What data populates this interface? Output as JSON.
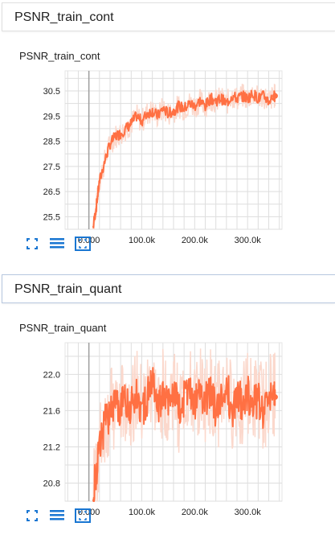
{
  "sections": [
    {
      "header": "PSNR_train_cont",
      "card_title": "PSNR_train_cont",
      "active": false
    },
    {
      "header": "PSNR_train_quant",
      "card_title": "PSNR_train_quant",
      "active": true
    }
  ],
  "toolbar": {
    "icons": [
      "fit-domain-icon",
      "toggle-log-scale-icon",
      "expand-chart-icon"
    ]
  },
  "colors": {
    "line": "#ff7043",
    "line_light": "#fbd8cc",
    "grid": "#dedede",
    "zero_axis": "#9e9e9e",
    "icon": "#1976d2"
  },
  "chart_data": [
    {
      "type": "line",
      "title": "PSNR_train_cont",
      "xlabel": "",
      "ylabel": "",
      "x_ticks": [
        "0.000",
        "100.0k",
        "200.0k",
        "300.0k"
      ],
      "x_tick_values": [
        0,
        100000,
        200000,
        300000
      ],
      "y_ticks": [
        "25.5",
        "26.5",
        "27.5",
        "28.5",
        "29.5",
        "30.5"
      ],
      "y_tick_values": [
        25.5,
        26.5,
        27.5,
        28.5,
        29.5,
        30.5
      ],
      "xlim": [
        -45000,
        365000
      ],
      "ylim": [
        25.0,
        31.3
      ],
      "grid": true,
      "series": [
        {
          "smoothed": true,
          "x": [
            8000,
            14000,
            20000,
            30000,
            40000,
            50000,
            60000,
            70000,
            80000,
            90000,
            100000,
            110000,
            120000,
            130000,
            140000,
            150000,
            160000,
            170000,
            180000,
            190000,
            200000,
            210000,
            220000,
            230000,
            240000,
            250000,
            260000,
            270000,
            280000,
            290000,
            300000,
            310000,
            320000,
            330000,
            340000,
            350000,
            352000
          ],
          "y": [
            25.1,
            25.9,
            26.9,
            27.7,
            28.4,
            28.7,
            28.8,
            29.0,
            29.2,
            29.5,
            29.3,
            29.6,
            29.7,
            29.5,
            29.8,
            29.6,
            29.7,
            29.9,
            29.8,
            30.0,
            29.9,
            30.1,
            29.9,
            30.2,
            30.1,
            30.2,
            30.0,
            30.3,
            30.2,
            30.3,
            30.2,
            30.4,
            30.2,
            30.3,
            30.1,
            30.3,
            30.3
          ]
        }
      ]
    },
    {
      "type": "line",
      "title": "PSNR_train_quant",
      "xlabel": "",
      "ylabel": "",
      "x_ticks": [
        "0.000",
        "100.0k",
        "200.0k",
        "300.0k"
      ],
      "x_tick_values": [
        0,
        100000,
        200000,
        300000
      ],
      "y_ticks": [
        "20.8",
        "21.2",
        "21.6",
        "22.0"
      ],
      "y_tick_values": [
        20.8,
        21.2,
        21.6,
        22.0
      ],
      "xlim": [
        -45000,
        365000
      ],
      "ylim": [
        20.6,
        22.35
      ],
      "grid": true,
      "series": [
        {
          "smoothed": true,
          "x": [
            8000,
            14000,
            20000,
            30000,
            40000,
            50000,
            60000,
            70000,
            80000,
            90000,
            100000,
            110000,
            120000,
            130000,
            140000,
            150000,
            160000,
            170000,
            180000,
            190000,
            200000,
            210000,
            220000,
            230000,
            240000,
            250000,
            260000,
            270000,
            280000,
            290000,
            300000,
            310000,
            320000,
            330000,
            340000,
            350000,
            352000
          ],
          "y": [
            20.65,
            20.95,
            21.2,
            21.45,
            21.55,
            21.7,
            21.6,
            21.75,
            21.65,
            21.8,
            21.6,
            21.75,
            21.9,
            21.6,
            21.8,
            21.7,
            21.85,
            21.6,
            21.75,
            21.8,
            21.65,
            21.85,
            21.7,
            21.8,
            21.6,
            21.75,
            21.9,
            21.6,
            21.75,
            21.7,
            21.8,
            21.65,
            21.75,
            21.6,
            21.8,
            21.75,
            21.75
          ]
        }
      ]
    }
  ]
}
